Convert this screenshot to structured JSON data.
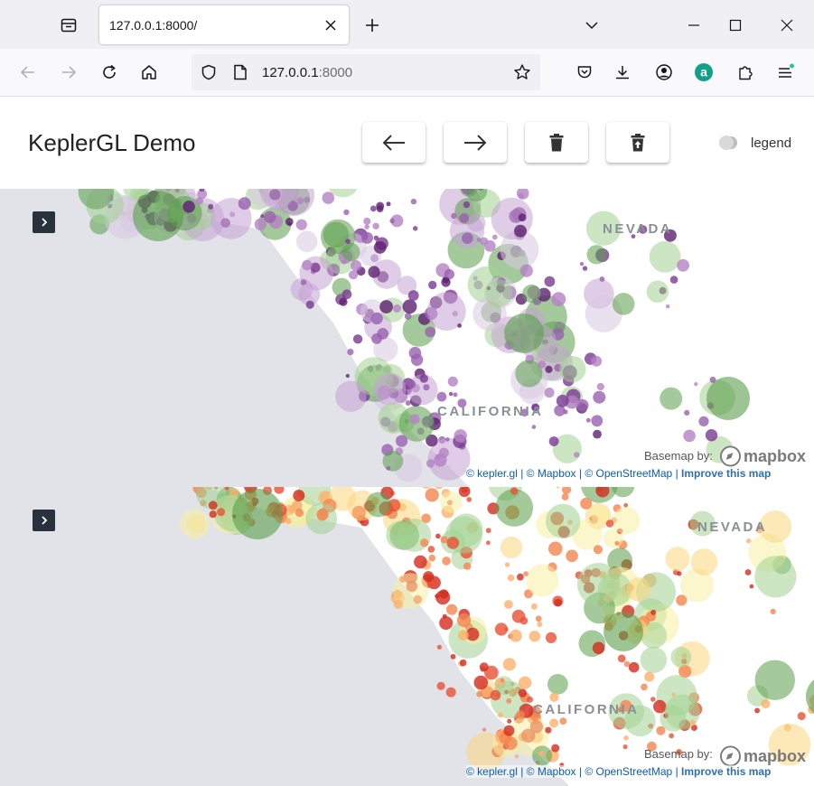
{
  "browser": {
    "tab_title": "127.0.0.1:8000/",
    "url_host": "127.0.0.1",
    "url_port": ":8000"
  },
  "app": {
    "title": "KeplerGL Demo",
    "legend_label": "legend",
    "legend_on": false
  },
  "maps": [
    {
      "state_labels": {
        "nevada": "NEVADA",
        "california": "CALIFORNIA"
      },
      "basemap_label": "Basemap by:",
      "logo_text": "mapbox",
      "attribution": {
        "kepler": "© kepler.gl",
        "mapbox": "© Mapbox",
        "osm": "© OpenStreetMap",
        "improve": "Improve this map"
      },
      "palette": [
        "#5a9e4b",
        "#a3d292",
        "#d8c8e2",
        "#c4a3d3",
        "#b482c4",
        "#9960b0",
        "#7a3a92",
        "#5e2170"
      ]
    },
    {
      "state_labels": {
        "nevada": "NEVADA",
        "california": "CALIFORNIA"
      },
      "basemap_label": "Basemap by:",
      "logo_text": "mapbox",
      "attribution": {
        "kepler": "© kepler.gl",
        "mapbox": "© Mapbox",
        "osm": "© OpenStreetMap",
        "improve": "Improve this map"
      },
      "palette": [
        "#5a9e4b",
        "#a3d292",
        "#f7eea0",
        "#fcd57c",
        "#fdb06a",
        "#f5844f",
        "#ea5034",
        "#d42b1e"
      ]
    }
  ]
}
